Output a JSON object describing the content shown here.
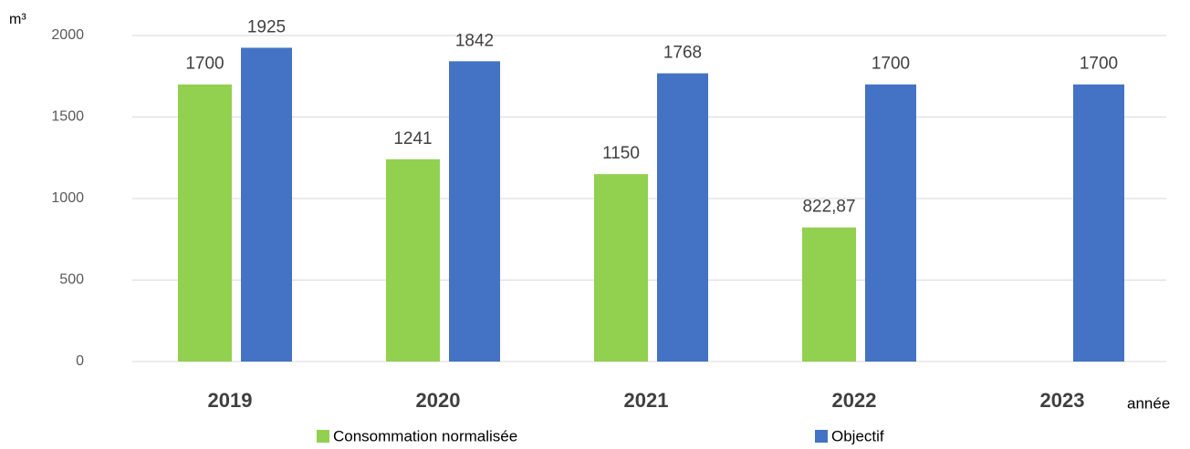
{
  "chart_data": {
    "type": "bar",
    "y_label": "m³",
    "x_label": "année",
    "categories": [
      "2019",
      "2020",
      "2021",
      "2022",
      "2023"
    ],
    "series": [
      {
        "name": "Consommation normalisée",
        "color": "#92d050",
        "values": [
          1700,
          1241,
          1150,
          822.87,
          null
        ],
        "value_labels": [
          "1700",
          "1241",
          "1150",
          "822,87",
          null
        ]
      },
      {
        "name": "Objectif",
        "color": "#4472c4",
        "values": [
          1925,
          1842,
          1768,
          1700,
          1700
        ]
      }
    ],
    "ylim": [
      0,
      2000
    ],
    "yticks": [
      0,
      500,
      1000,
      1500,
      2000
    ],
    "grid": true,
    "legend": "bottom"
  }
}
